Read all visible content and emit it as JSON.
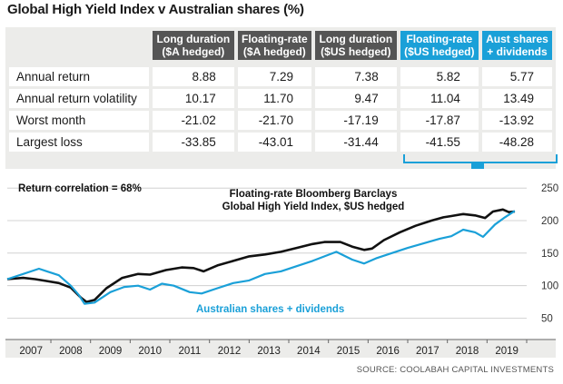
{
  "title": "Global High Yield Index v Australian shares (%)",
  "table": {
    "columns": [
      "Long duration\n($A hedged)",
      "Floating-rate\n($A hedged)",
      "Long duration\n($US hedged)",
      "Floating-rate\n($US hedged)",
      "Aust shares\n+ dividends"
    ],
    "column_lines": [
      [
        "Long duration",
        "($A hedged)"
      ],
      [
        "Floating-rate",
        "($A hedged)"
      ],
      [
        "Long duration",
        "($US hedged)"
      ],
      [
        "Floating-rate",
        "($US hedged)"
      ],
      [
        "Aust shares",
        "+ dividends"
      ]
    ],
    "highlight_columns": [
      3,
      4
    ],
    "rows": [
      {
        "label": "Annual return",
        "values": [
          "8.88",
          "7.29",
          "7.38",
          "5.82",
          "5.77"
        ]
      },
      {
        "label": "Annual return volatility",
        "values": [
          "10.17",
          "11.70",
          "9.47",
          "11.04",
          "13.49"
        ]
      },
      {
        "label": "Worst month",
        "values": [
          "-21.02",
          "-21.70",
          "-17.19",
          "-17.87",
          "-13.92"
        ]
      },
      {
        "label": "Largest loss",
        "values": [
          "-33.85",
          "-43.01",
          "-31.44",
          "-41.55",
          "-48.28"
        ]
      }
    ]
  },
  "colors": {
    "header_bg": "#555555",
    "highlight": "#1aa0d8",
    "panel_bg": "#ececea",
    "series_hy": "#111111",
    "series_shares": "#1aa0d8"
  },
  "chart_data": {
    "type": "line",
    "annotation": "Return correlation = 68%",
    "x_ticks": [
      "2007",
      "2008",
      "2009",
      "2010",
      "2011",
      "2012",
      "2013",
      "2014",
      "2015",
      "2016",
      "2017",
      "2018",
      "2019"
    ],
    "y_ticks": [
      50,
      100,
      150,
      200,
      250
    ],
    "ylim": [
      20,
      260
    ],
    "xlim": [
      2006.9,
      2020.0
    ],
    "y_axis_position": "right",
    "grid": true,
    "series": [
      {
        "name": "Floating-rate Bloomberg Barclays Global High Yield Index, $US hedged",
        "label_lines": [
          "Floating-rate Bloomberg Barclays",
          "Global High Yield Index, $US hedged"
        ],
        "color": "#111111",
        "x": [
          2006.9,
          2007.3,
          2007.6,
          2007.9,
          2008.2,
          2008.5,
          2008.75,
          2008.9,
          2009.1,
          2009.4,
          2009.8,
          2010.2,
          2010.5,
          2010.9,
          2011.3,
          2011.6,
          2011.85,
          2012.2,
          2012.6,
          2013.0,
          2013.4,
          2013.8,
          2014.2,
          2014.6,
          2014.9,
          2015.3,
          2015.6,
          2015.9,
          2016.1,
          2016.4,
          2016.8,
          2017.2,
          2017.6,
          2017.9,
          2018.1,
          2018.4,
          2018.7,
          2018.95,
          2019.15,
          2019.4,
          2019.55,
          2019.7
        ],
        "y": [
          110,
          112,
          110,
          107,
          104,
          97,
          82,
          75,
          78,
          96,
          112,
          118,
          117,
          124,
          128,
          127,
          122,
          131,
          138,
          145,
          148,
          152,
          158,
          164,
          167,
          167,
          160,
          155,
          157,
          170,
          182,
          192,
          200,
          205,
          207,
          210,
          208,
          204,
          214,
          217,
          213,
          214
        ]
      },
      {
        "name": "Australian shares + dividends",
        "color": "#1aa0d8",
        "x": [
          2006.9,
          2007.3,
          2007.7,
          2007.9,
          2008.2,
          2008.5,
          2008.7,
          2008.85,
          2009.1,
          2009.5,
          2009.85,
          2010.2,
          2010.5,
          2010.8,
          2011.1,
          2011.5,
          2011.8,
          2012.2,
          2012.6,
          2013.0,
          2013.4,
          2013.8,
          2014.2,
          2014.6,
          2014.9,
          2015.2,
          2015.6,
          2015.9,
          2016.2,
          2016.6,
          2017.0,
          2017.4,
          2017.8,
          2018.1,
          2018.4,
          2018.7,
          2018.9,
          2019.2,
          2019.45,
          2019.7
        ],
        "y": [
          110,
          118,
          126,
          122,
          116,
          100,
          86,
          72,
          74,
          90,
          98,
          100,
          94,
          103,
          100,
          90,
          88,
          96,
          104,
          108,
          118,
          122,
          130,
          138,
          145,
          152,
          140,
          134,
          142,
          150,
          158,
          165,
          172,
          176,
          186,
          182,
          175,
          194,
          205,
          215
        ]
      }
    ]
  },
  "source": "SOURCE: COOLABAH CAPITAL INVESTMENTS"
}
